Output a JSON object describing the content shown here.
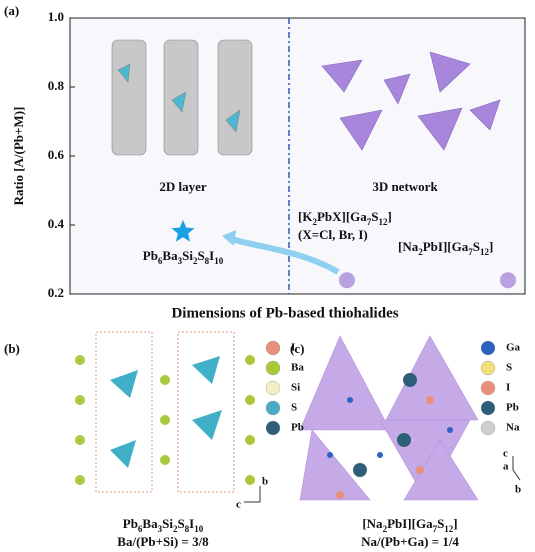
{
  "panel_labels": [
    "(a)",
    "(b)",
    "(c)"
  ],
  "chart_data": {
    "type": "scatter",
    "ylabel": "Ratio [A/(Pb+M)]",
    "xlabel": "Dimensions of Pb-based thiohalides",
    "ylim": [
      0.2,
      1.0
    ],
    "yticks": [
      0.2,
      0.4,
      0.6,
      0.8,
      {
        "value": 1,
        "label": "1.0"
      }
    ],
    "regions": [
      "2D layer",
      "3D network"
    ],
    "points": [
      {
        "label": "Pb6Ba3Si2S8I10",
        "value": 0.38,
        "marker": "star",
        "color": "#1ba1e2"
      },
      {
        "label": "[K2PbX][Ga7S12]",
        "note": "(X=Cl, Br, I)",
        "value": 0.24,
        "marker": "circle",
        "color": "#b9a0e0"
      },
      {
        "label": "[Na2PbI][Ga7S12]",
        "value": 0.24,
        "marker": "circle",
        "color": "#b9a0e0"
      }
    ]
  },
  "panel_b": {
    "legend": [
      {
        "name": "I",
        "color": "#e9907c"
      },
      {
        "name": "Ba",
        "color": "#a9c83a"
      },
      {
        "name": "Si",
        "color": "#f4eec4"
      },
      {
        "name": "S",
        "color": "#4aa9c6"
      },
      {
        "name": "Pb",
        "color": "#2f5f78"
      }
    ],
    "axes": [
      "b",
      "c"
    ],
    "formula": "Pb6Ba3Si2S8I10",
    "ratio": "Ba/(Pb+Si) = 3/8"
  },
  "panel_c": {
    "legend": [
      {
        "name": "Ga",
        "color": "#2c62c2"
      },
      {
        "name": "S",
        "color": "#efe07a"
      },
      {
        "name": "I",
        "color": "#e9907c"
      },
      {
        "name": "Pb",
        "color": "#2f5f78"
      },
      {
        "name": "Na",
        "color": "#cfcfcf"
      }
    ],
    "axes": [
      "c",
      "a",
      "b"
    ],
    "formula": "[Na2PbI][Ga7S12]",
    "ratio": "Na/(Pb+Ga) = 1/4"
  }
}
